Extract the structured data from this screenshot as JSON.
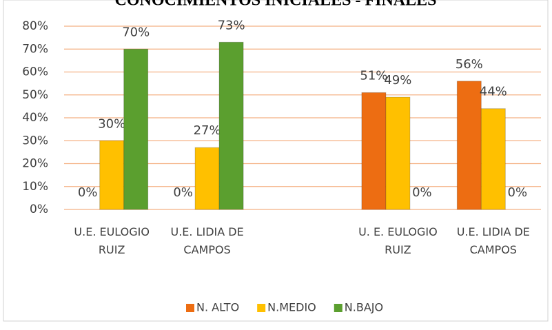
{
  "chart_data": {
    "type": "bar",
    "title": "CONOCIMIENTOS INICIALES - FINALES",
    "categories": [
      "U.E. EULOGIO RUIZ",
      "U.E. LIDIA DE CAMPOS",
      null,
      "U. E. EULOGIO RUIZ",
      "U.E. LIDIA DE CAMPOS"
    ],
    "series": [
      {
        "name": "N. ALTO",
        "color": "#ed6d12",
        "values": [
          0,
          0,
          null,
          51,
          56
        ],
        "value_labels": [
          "0%",
          "0%",
          null,
          "51%",
          "56%"
        ]
      },
      {
        "name": "N.MEDIO",
        "color": "#ffc000",
        "values": [
          30,
          27,
          null,
          49,
          44
        ],
        "value_labels": [
          "30%",
          "27%",
          null,
          "49%",
          "44%"
        ]
      },
      {
        "name": "N.BAJO",
        "color": "#5b9f2f",
        "values": [
          70,
          73,
          null,
          0,
          0
        ],
        "value_labels": [
          "70%",
          "73%",
          null,
          "0%",
          "0%"
        ]
      }
    ],
    "ylim": [
      0,
      80
    ],
    "yticks": [
      {
        "value": 0,
        "label": "0%"
      },
      {
        "value": 10,
        "label": "10%"
      },
      {
        "value": 20,
        "label": "20%"
      },
      {
        "value": 30,
        "label": "30%"
      },
      {
        "value": 40,
        "label": "40%"
      },
      {
        "value": 50,
        "label": "50%"
      },
      {
        "value": 60,
        "label": "60%"
      },
      {
        "value": 70,
        "label": "70%"
      },
      {
        "value": 80,
        "label": "80%"
      }
    ],
    "grid": true,
    "legend": "bottom"
  }
}
